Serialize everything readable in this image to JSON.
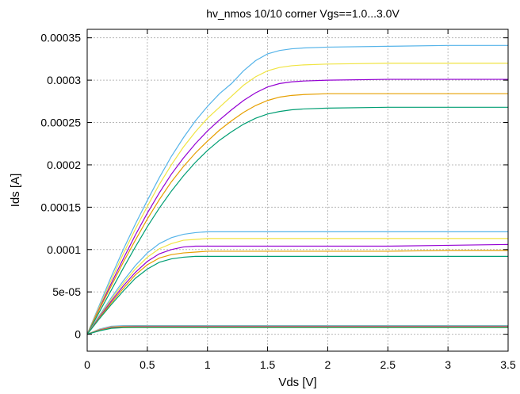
{
  "chart_data": {
    "type": "line",
    "title": "hv_nmos 10/10 corner Vgs==1.0...3.0V",
    "xlabel": "Vds [V]",
    "ylabel": "Ids [A]",
    "xlim": [
      0,
      3.5
    ],
    "ylim": [
      -2e-05,
      0.00036
    ],
    "xticks": [
      0,
      0.5,
      1,
      1.5,
      2,
      2.5,
      3,
      3.5
    ],
    "xtick_labels": [
      "0",
      "0.5",
      "1",
      "1.5",
      "2",
      "2.5",
      "3",
      "3.5"
    ],
    "yticks": [
      0,
      5e-05,
      0.0001,
      0.00015,
      0.0002,
      0.00025,
      0.0003,
      0.00035
    ],
    "ytick_labels": [
      "0",
      "5e-05",
      "0.0001",
      "0.00015",
      "0.0002",
      "0.00025",
      "0.0003",
      "0.00035"
    ],
    "grid": true,
    "legend": "none",
    "x_samples": [
      0,
      0.1,
      0.2,
      0.3,
      0.4,
      0.5,
      0.6,
      0.7,
      0.8,
      0.9,
      1.0,
      1.1,
      1.2,
      1.3,
      1.4,
      1.5,
      1.6,
      1.7,
      1.8,
      2.0,
      2.5,
      3.0,
      3.5
    ],
    "series": [
      {
        "color": "#56b4e9",
        "values": [
          0,
          3.4e-05,
          6.8e-05,
          0.0001,
          0.00013,
          0.000158,
          0.000185,
          0.00021,
          0.000232,
          0.000252,
          0.000269,
          0.000284,
          0.000296,
          0.000311,
          0.000323,
          0.000331,
          0.000335,
          0.000337,
          0.000338,
          0.000339,
          0.00034,
          0.000341,
          0.000341
        ]
      },
      {
        "color": "#f0e442",
        "values": [
          0,
          3.2e-05,
          6.4e-05,
          9.5e-05,
          0.000124,
          0.000151,
          0.000177,
          0.0002,
          0.000221,
          0.000239,
          0.000255,
          0.000268,
          0.000281,
          0.000294,
          0.000304,
          0.000311,
          0.000315,
          0.000317,
          0.000318,
          0.000319,
          0.00032,
          0.00032,
          0.00032
        ]
      },
      {
        "color": "#9400d3",
        "values": [
          0,
          3e-05,
          6e-05,
          8.9e-05,
          0.000117,
          0.000143,
          0.000167,
          0.000189,
          0.000208,
          0.000225,
          0.00024,
          0.000253,
          0.000265,
          0.000276,
          0.000285,
          0.000292,
          0.000296,
          0.000298,
          0.000299,
          0.0003,
          0.000301,
          0.000301,
          0.000301
        ]
      },
      {
        "color": "#e69f00",
        "values": [
          0,
          2.9e-05,
          5.7e-05,
          8.5e-05,
          0.000111,
          0.000136,
          0.000159,
          0.00018,
          0.000198,
          0.000214,
          0.000228,
          0.000241,
          0.000252,
          0.000262,
          0.00027,
          0.000276,
          0.00028,
          0.000282,
          0.000283,
          0.000284,
          0.000284,
          0.000284,
          0.000284
        ]
      },
      {
        "color": "#009e73",
        "values": [
          0,
          2.6e-05,
          5.2e-05,
          7.8e-05,
          0.000103,
          0.000127,
          0.000149,
          0.000169,
          0.000187,
          0.000203,
          0.000217,
          0.000229,
          0.000239,
          0.000248,
          0.000255,
          0.00026,
          0.000263,
          0.000265,
          0.000266,
          0.000267,
          0.000268,
          0.000268,
          0.000268
        ]
      },
      {
        "color": "#56b4e9",
        "values": [
          0,
          2.2e-05,
          4.3e-05,
          6.3e-05,
          8.1e-05,
          9.6e-05,
          0.000107,
          0.000114,
          0.000118,
          0.00012,
          0.000121,
          0.000121,
          0.000121,
          0.000121,
          0.000121,
          0.000121,
          0.000121,
          0.000121,
          0.000121,
          0.000121,
          0.000121,
          0.000121,
          0.000121
        ]
      },
      {
        "color": "#f0e442",
        "values": [
          0,
          2.1e-05,
          4.1e-05,
          6e-05,
          7.7e-05,
          9.1e-05,
          0.000101,
          0.000107,
          0.000111,
          0.000112,
          0.000113,
          0.000113,
          0.000113,
          0.000113,
          0.000113,
          0.000113,
          0.000113,
          0.000113,
          0.000113,
          0.000113,
          0.000113,
          0.000113,
          0.000113
        ]
      },
      {
        "color": "#9400d3",
        "values": [
          0,
          2e-05,
          3.9e-05,
          5.7e-05,
          7.3e-05,
          8.6e-05,
          9.5e-05,
          0.0001,
          0.000103,
          0.000104,
          0.000104,
          0.000104,
          0.000104,
          0.000104,
          0.000104,
          0.000104,
          0.000104,
          0.000104,
          0.000104,
          0.000104,
          0.000104,
          0.000105,
          0.000106
        ]
      },
      {
        "color": "#e69f00",
        "values": [
          0,
          1.9e-05,
          3.7e-05,
          5.4e-05,
          7e-05,
          8.2e-05,
          9e-05,
          9.4e-05,
          9.6e-05,
          9.7e-05,
          9.8e-05,
          9.8e-05,
          9.8e-05,
          9.8e-05,
          9.8e-05,
          9.8e-05,
          9.8e-05,
          9.8e-05,
          9.8e-05,
          9.8e-05,
          9.8e-05,
          9.9e-05,
          9.9e-05
        ]
      },
      {
        "color": "#009e73",
        "values": [
          0,
          1.8e-05,
          3.5e-05,
          5.1e-05,
          6.6e-05,
          7.7e-05,
          8.5e-05,
          8.9e-05,
          9.1e-05,
          9.2e-05,
          9.2e-05,
          9.2e-05,
          9.2e-05,
          9.2e-05,
          9.2e-05,
          9.2e-05,
          9.2e-05,
          9.2e-05,
          9.2e-05,
          9.2e-05,
          9.2e-05,
          9.2e-05,
          9.2e-05
        ]
      },
      {
        "color": "#56b4e9",
        "values": [
          0,
          6e-06,
          9.5e-06,
          1.02e-05,
          1.03e-05,
          1.03e-05,
          1.03e-05,
          1.03e-05,
          1.03e-05,
          1.03e-05,
          1.03e-05,
          1.03e-05,
          1.03e-05,
          1.03e-05,
          1.03e-05,
          1.03e-05,
          1.03e-05,
          1.03e-05,
          1.03e-05,
          1.03e-05,
          1.03e-05,
          1.03e-05,
          1.03e-05
        ]
      },
      {
        "color": "#f0e442",
        "values": [
          0,
          5.5e-06,
          8.8e-06,
          9.5e-06,
          9.6e-06,
          9.6e-06,
          9.6e-06,
          9.6e-06,
          9.6e-06,
          9.6e-06,
          9.6e-06,
          9.6e-06,
          9.6e-06,
          9.6e-06,
          9.6e-06,
          9.6e-06,
          9.6e-06,
          9.6e-06,
          9.6e-06,
          9.6e-06,
          9.6e-06,
          9.6e-06,
          9.6e-06
        ]
      },
      {
        "color": "#9400d3",
        "values": [
          0,
          5e-06,
          8.2e-06,
          8.9e-06,
          9e-06,
          9e-06,
          9e-06,
          9e-06,
          9e-06,
          9e-06,
          9e-06,
          9e-06,
          9e-06,
          9e-06,
          9e-06,
          9e-06,
          9e-06,
          9e-06,
          9e-06,
          9e-06,
          9e-06,
          9e-06,
          9e-06
        ]
      },
      {
        "color": "#e69f00",
        "values": [
          0,
          4.5e-06,
          7.6e-06,
          8.4e-06,
          8.5e-06,
          8.5e-06,
          8.5e-06,
          8.5e-06,
          8.5e-06,
          8.5e-06,
          8.5e-06,
          8.5e-06,
          8.5e-06,
          8.5e-06,
          8.5e-06,
          8.5e-06,
          8.5e-06,
          8.5e-06,
          8.5e-06,
          8.5e-06,
          8.5e-06,
          8.5e-06,
          8.5e-06
        ]
      },
      {
        "color": "#009e73",
        "values": [
          0,
          4e-06,
          7e-06,
          7.8e-06,
          7.9e-06,
          7.9e-06,
          7.9e-06,
          7.9e-06,
          7.9e-06,
          7.9e-06,
          7.9e-06,
          7.9e-06,
          7.9e-06,
          7.9e-06,
          7.9e-06,
          7.9e-06,
          7.9e-06,
          7.9e-06,
          7.9e-06,
          7.9e-06,
          7.9e-06,
          7.9e-06,
          7.9e-06
        ]
      }
    ]
  }
}
